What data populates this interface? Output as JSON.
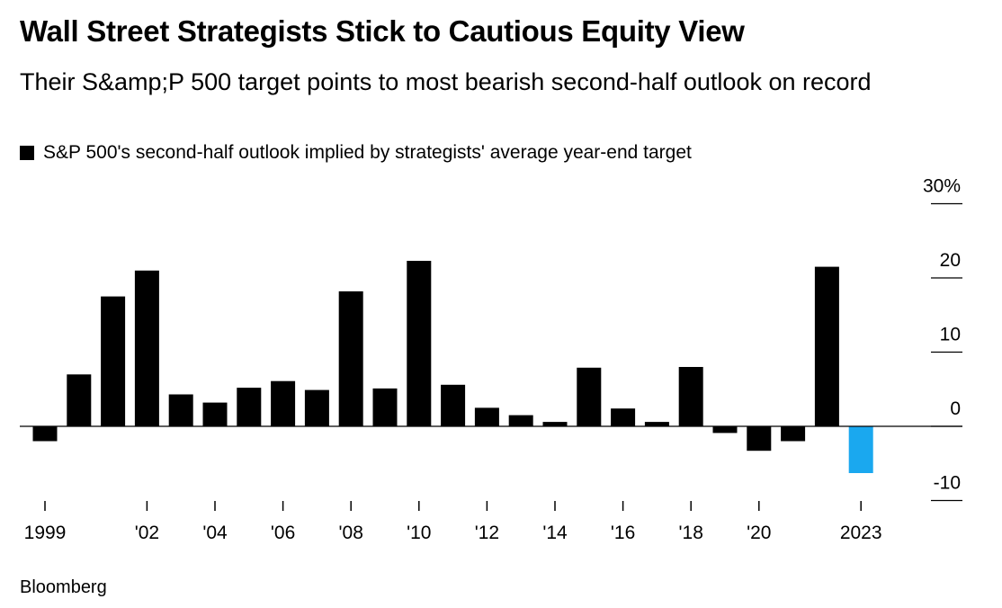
{
  "header": {
    "title": "Wall Street Strategists Stick to Cautious Equity View",
    "subtitle": "Their S&amp;P 500 target points to most bearish second-half outlook on record"
  },
  "legend": {
    "label": "S&P 500's second-half outlook implied by strategists' average year-end target",
    "swatch_color": "#000000"
  },
  "footer": {
    "source": "Bloomberg"
  },
  "chart_data": {
    "type": "bar",
    "categories": [
      "1999",
      "2000",
      "2001",
      "2002",
      "2003",
      "2004",
      "2005",
      "2006",
      "2007",
      "2008",
      "2009",
      "2010",
      "2011",
      "2012",
      "2013",
      "2014",
      "2015",
      "2016",
      "2017",
      "2018",
      "2019",
      "2020",
      "2021",
      "2022",
      "2023"
    ],
    "values": [
      -2.0,
      7.0,
      17.5,
      21.0,
      4.3,
      3.2,
      5.2,
      6.1,
      4.9,
      18.2,
      5.1,
      22.3,
      5.6,
      2.5,
      1.5,
      0.6,
      7.9,
      2.4,
      0.6,
      8.0,
      -0.9,
      -3.3,
      -2.0,
      21.5,
      -6.3
    ],
    "highlight_index": 24,
    "colors": {
      "default": "#000000",
      "highlight": "#1aa8ef"
    },
    "ylim": [
      -10,
      30
    ],
    "y_ticks": [
      30,
      20,
      10,
      0,
      -10
    ],
    "y_tick_labels": [
      "30%",
      "20",
      "10",
      "0",
      "-10"
    ],
    "x_tick_labels": [
      {
        "category": "1999",
        "label": "1999"
      },
      {
        "category": "2002",
        "label": "'02"
      },
      {
        "category": "2004",
        "label": "'04"
      },
      {
        "category": "2006",
        "label": "'06"
      },
      {
        "category": "2008",
        "label": "'08"
      },
      {
        "category": "2010",
        "label": "'10"
      },
      {
        "category": "2012",
        "label": "'12"
      },
      {
        "category": "2014",
        "label": "'14"
      },
      {
        "category": "2016",
        "label": "'16"
      },
      {
        "category": "2018",
        "label": "'18"
      },
      {
        "category": "2020",
        "label": "'20"
      },
      {
        "category": "2023",
        "label": "2023"
      }
    ],
    "xlabel": "",
    "ylabel": "",
    "grid": false,
    "legend_position": "top-left"
  }
}
